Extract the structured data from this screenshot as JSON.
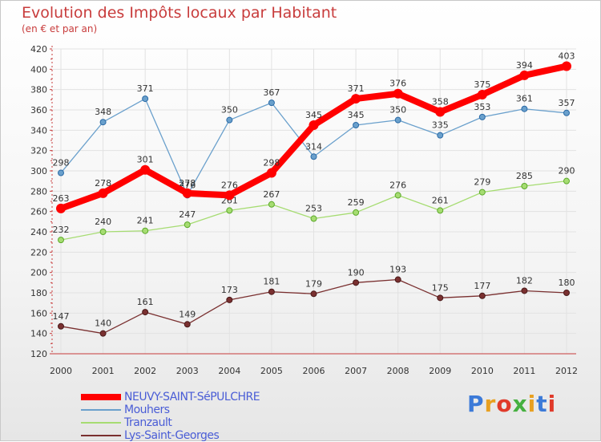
{
  "title": "Evolution des Impôts locaux par Habitant",
  "subtitle": "(en € et par an)",
  "logo": {
    "text": "Proxiti",
    "colors": [
      "#3c7ad8",
      "#e8a020",
      "#e03a2a",
      "#46b040",
      "#e8a020",
      "#3c7ad8",
      "#e03a2a"
    ]
  },
  "chart_data": {
    "type": "line",
    "x": [
      "2000",
      "2001",
      "2002",
      "2003",
      "2004",
      "2005",
      "2006",
      "2007",
      "2008",
      "2009",
      "2010",
      "2011",
      "2012"
    ],
    "ylim": [
      120,
      420
    ],
    "yticks": [
      120,
      140,
      160,
      180,
      200,
      220,
      240,
      260,
      280,
      300,
      320,
      340,
      360,
      380,
      400,
      420
    ],
    "grid": true,
    "legend_position": "bottom-left",
    "series": [
      {
        "name": "NEUVY-SAINT-SéPULCHRE",
        "color": "#ff0000",
        "values": [
          263,
          278,
          301,
          278,
          276,
          298,
          345,
          371,
          376,
          358,
          375,
          394,
          403
        ]
      },
      {
        "name": "Mouhers",
        "color": "#6aa0cc",
        "values": [
          298,
          348,
          371,
          276,
          350,
          367,
          314,
          345,
          350,
          335,
          353,
          361,
          357
        ]
      },
      {
        "name": "Tranzault",
        "color": "#a6dc72",
        "values": [
          232,
          240,
          241,
          247,
          261,
          267,
          253,
          259,
          276,
          261,
          279,
          285,
          290
        ]
      },
      {
        "name": "Lys-Saint-Georges",
        "color": "#7a3030",
        "values": [
          147,
          140,
          161,
          149,
          173,
          181,
          179,
          190,
          193,
          175,
          177,
          182,
          180
        ]
      }
    ]
  }
}
